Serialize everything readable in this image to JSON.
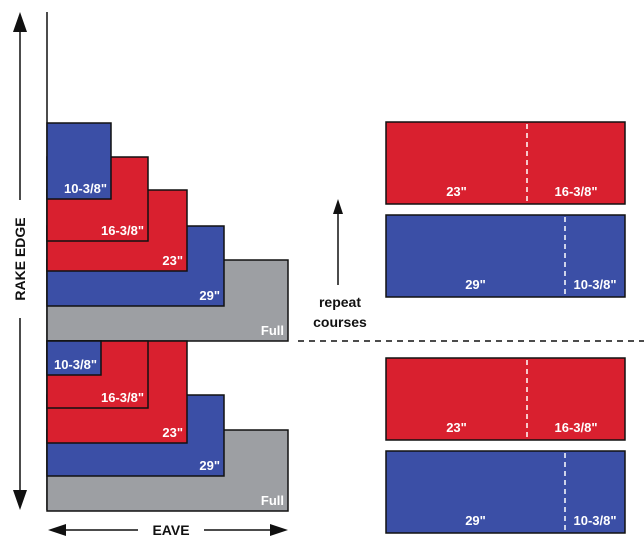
{
  "colors": {
    "red": "#d9202f",
    "blue": "#3b4fa6",
    "gray": "#9d9fa3",
    "outline": "#111111",
    "text_light": "#ffffff",
    "text_dark": "#111111"
  },
  "axis_labels": {
    "rake_edge": "RAKE EDGE",
    "eave": "EAVE"
  },
  "repeat_note": {
    "line1": "repeat",
    "line2": "courses"
  },
  "courses": [
    {
      "label": "10-3/8\"",
      "color": "blue"
    },
    {
      "label": "16-3/8\"",
      "color": "red"
    },
    {
      "label": "23\"",
      "color": "red"
    },
    {
      "label": "29\"",
      "color": "blue"
    },
    {
      "label": "Full",
      "color": "gray"
    }
  ],
  "source_panels": [
    {
      "color": "red",
      "left_label": "23\"",
      "right_label": "16-3/8\""
    },
    {
      "color": "blue",
      "left_label": "29\"",
      "right_label": "10-3/8\""
    }
  ]
}
